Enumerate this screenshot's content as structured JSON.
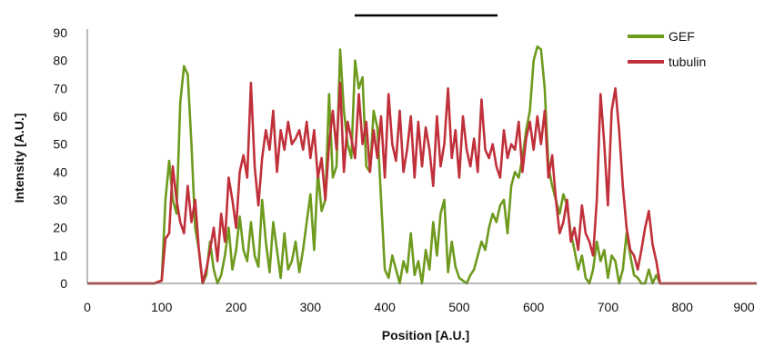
{
  "chart_data": {
    "type": "line",
    "xlabel": "Position [A.U.]",
    "ylabel": "Intensity [A.U.]",
    "xlim": [
      0,
      900
    ],
    "ylim": [
      0,
      90
    ],
    "xticks": [
      0,
      100,
      200,
      300,
      400,
      500,
      600,
      700,
      800,
      900
    ],
    "yticks": [
      0,
      10,
      20,
      30,
      40,
      50,
      60,
      70,
      80,
      90
    ],
    "grid": false,
    "legend_position": "top-right",
    "x": [
      0,
      50,
      90,
      100,
      105,
      110,
      115,
      120,
      125,
      130,
      135,
      140,
      145,
      150,
      155,
      160,
      165,
      170,
      175,
      180,
      185,
      190,
      195,
      200,
      205,
      210,
      215,
      220,
      225,
      230,
      235,
      240,
      245,
      250,
      255,
      260,
      265,
      270,
      275,
      280,
      285,
      290,
      295,
      300,
      305,
      310,
      315,
      320,
      325,
      330,
      335,
      340,
      345,
      350,
      355,
      360,
      365,
      370,
      375,
      380,
      385,
      390,
      395,
      400,
      405,
      410,
      415,
      420,
      425,
      430,
      435,
      440,
      445,
      450,
      455,
      460,
      465,
      470,
      475,
      480,
      485,
      490,
      495,
      500,
      505,
      510,
      515,
      520,
      525,
      530,
      535,
      540,
      545,
      550,
      555,
      560,
      565,
      570,
      575,
      580,
      585,
      590,
      595,
      600,
      605,
      610,
      615,
      620,
      625,
      630,
      635,
      640,
      645,
      650,
      655,
      660,
      665,
      670,
      675,
      680,
      685,
      690,
      695,
      700,
      705,
      710,
      715,
      720,
      725,
      730,
      735,
      740,
      745,
      750,
      755,
      760,
      765,
      770,
      780,
      800,
      850,
      900
    ],
    "series": [
      {
        "name": "GEF",
        "color": "#6e9a1e",
        "values": [
          0,
          0,
          0,
          1,
          30,
          44,
          30,
          25,
          65,
          78,
          75,
          50,
          20,
          12,
          0,
          3,
          15,
          5,
          0,
          3,
          10,
          20,
          5,
          12,
          24,
          12,
          8,
          22,
          10,
          6,
          30,
          15,
          4,
          22,
          12,
          2,
          18,
          5,
          8,
          15,
          4,
          12,
          22,
          32,
          12,
          40,
          26,
          30,
          68,
          38,
          42,
          84,
          62,
          50,
          45,
          80,
          70,
          74,
          42,
          40,
          62,
          56,
          30,
          5,
          2,
          10,
          5,
          0,
          8,
          4,
          18,
          3,
          8,
          0,
          12,
          5,
          22,
          10,
          25,
          30,
          4,
          15,
          6,
          2,
          1,
          0,
          3,
          5,
          10,
          15,
          12,
          20,
          25,
          22,
          28,
          30,
          18,
          35,
          40,
          38,
          45,
          55,
          62,
          80,
          85,
          84,
          70,
          42,
          35,
          30,
          25,
          32,
          28,
          18,
          12,
          5,
          10,
          2,
          0,
          5,
          15,
          8,
          12,
          2,
          10,
          8,
          0,
          5,
          18,
          10,
          3,
          2,
          0,
          0,
          5,
          0,
          3,
          0,
          0,
          0,
          0,
          0
        ]
      },
      {
        "name": "tubulin",
        "color": "#c0303a",
        "values": [
          0,
          0,
          0,
          1,
          16,
          18,
          42,
          30,
          22,
          18,
          35,
          22,
          30,
          12,
          0,
          5,
          12,
          20,
          8,
          25,
          15,
          38,
          30,
          20,
          40,
          46,
          38,
          72,
          42,
          28,
          45,
          55,
          48,
          62,
          40,
          55,
          48,
          58,
          50,
          52,
          55,
          48,
          58,
          45,
          55,
          38,
          45,
          30,
          50,
          62,
          48,
          72,
          40,
          58,
          52,
          45,
          68,
          50,
          58,
          40,
          55,
          45,
          60,
          38,
          68,
          50,
          44,
          62,
          40,
          48,
          60,
          38,
          58,
          42,
          56,
          48,
          35,
          60,
          42,
          50,
          70,
          45,
          55,
          38,
          60,
          48,
          42,
          52,
          40,
          66,
          48,
          45,
          50,
          42,
          38,
          55,
          45,
          50,
          48,
          58,
          40,
          52,
          58,
          48,
          60,
          50,
          62,
          38,
          46,
          30,
          18,
          22,
          30,
          15,
          20,
          12,
          28,
          18,
          15,
          10,
          30,
          68,
          50,
          28,
          62,
          70,
          55,
          35,
          20,
          12,
          10,
          5,
          12,
          20,
          26,
          14,
          8,
          0,
          0,
          0,
          0,
          0
        ]
      }
    ]
  }
}
